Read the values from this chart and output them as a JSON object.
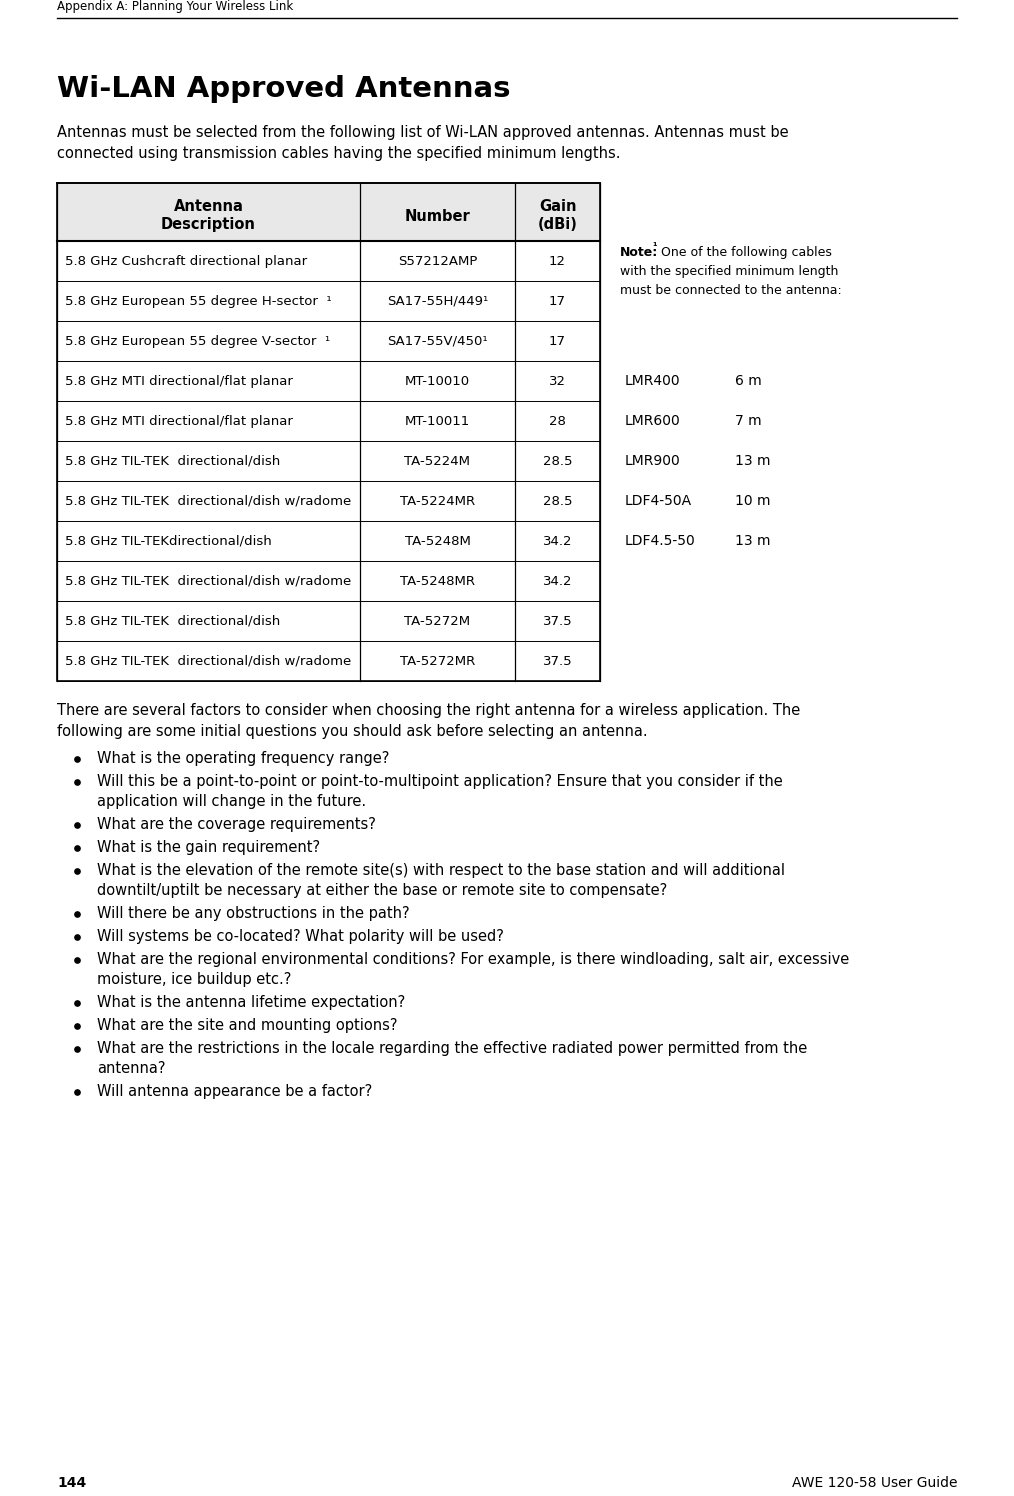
{
  "page_header": "Appendix A: Planning Your Wireless Link",
  "page_num_left": "144",
  "page_num_right": "AWE 120-58 User Guide",
  "section_title": "Wi-LAN Approved Antennas",
  "intro_text": "Antennas must be selected from the following list of Wi-LAN approved antennas. Antennas must be\nconnected using transmission cables having the specified minimum lengths.",
  "table_rows": [
    [
      "5.8 GHz Cushcraft directional planar",
      "S57212AMP",
      "12"
    ],
    [
      "5.8 GHz European 55 degree H-sector  ¹",
      "SA17-55H/449¹",
      "17"
    ],
    [
      "5.8 GHz European 55 degree V-sector  ¹",
      "SA17-55V/450¹",
      "17"
    ],
    [
      "5.8 GHz MTI directional/flat planar",
      "MT-10010",
      "32"
    ],
    [
      "5.8 GHz MTI directional/flat planar",
      "MT-10011",
      "28"
    ],
    [
      "5.8 GHz TIL-TEK  directional/dish",
      "TA-5224M",
      "28.5"
    ],
    [
      "5.8 GHz TIL-TEK  directional/dish w/radome",
      "TA-5224MR",
      "28.5"
    ],
    [
      "5.8 GHz TIL-TEKdirectional/dish",
      "TA-5248M",
      "34.2"
    ],
    [
      "5.8 GHz TIL-TEK  directional/dish w/radome",
      "TA-5248MR",
      "34.2"
    ],
    [
      "5.8 GHz TIL-TEK  directional/dish",
      "TA-5272M",
      "37.5"
    ],
    [
      "5.8 GHz TIL-TEK  directional/dish w/radome",
      "TA-5272MR",
      "37.5"
    ]
  ],
  "note_bold": "Note:",
  "note_sup": "¹",
  "note_rest_line1": " One of the following cables",
  "note_line2": "with the specified minimum length",
  "note_line3": "must be connected to the antenna:",
  "cable_rows": [
    [
      "LMR400",
      "6 m"
    ],
    [
      "LMR600",
      "7 m"
    ],
    [
      "LMR900",
      "13 m"
    ],
    [
      "LDF4-50A",
      "10 m"
    ],
    [
      "LDF4.5-50",
      "13 m"
    ]
  ],
  "bullet_intro": "There are several factors to consider when choosing the right antenna for a wireless application. The\nfollowing are some initial questions you should ask before selecting an antenna.",
  "bullet_points": [
    [
      "What is the operating frequency range?"
    ],
    [
      "Will this be a point-to-point or point-to-multipoint application? Ensure that you consider if the",
      "application will change in the future."
    ],
    [
      "What are the coverage requirements?"
    ],
    [
      "What is the gain requirement?"
    ],
    [
      "What is the elevation of the remote site(s) with respect to the base station and will additional",
      "downtilt/uptilt be necessary at either the base or remote site to compensate?"
    ],
    [
      "Will there be any obstructions in the path?"
    ],
    [
      "Will systems be co-located? What polarity will be used?"
    ],
    [
      "What are the regional environmental conditions? For example, is there windloading, salt air, excessive",
      "moisture, ice buildup etc.?"
    ],
    [
      "What is the antenna lifetime expectation?"
    ],
    [
      "What are the site and mounting options?"
    ],
    [
      "What are the restrictions in the locale regarding the effective radiated power permitted from the",
      "antenna?"
    ],
    [
      "Will antenna appearance be a factor?"
    ]
  ],
  "bg_color": "#ffffff",
  "text_color": "#000000"
}
